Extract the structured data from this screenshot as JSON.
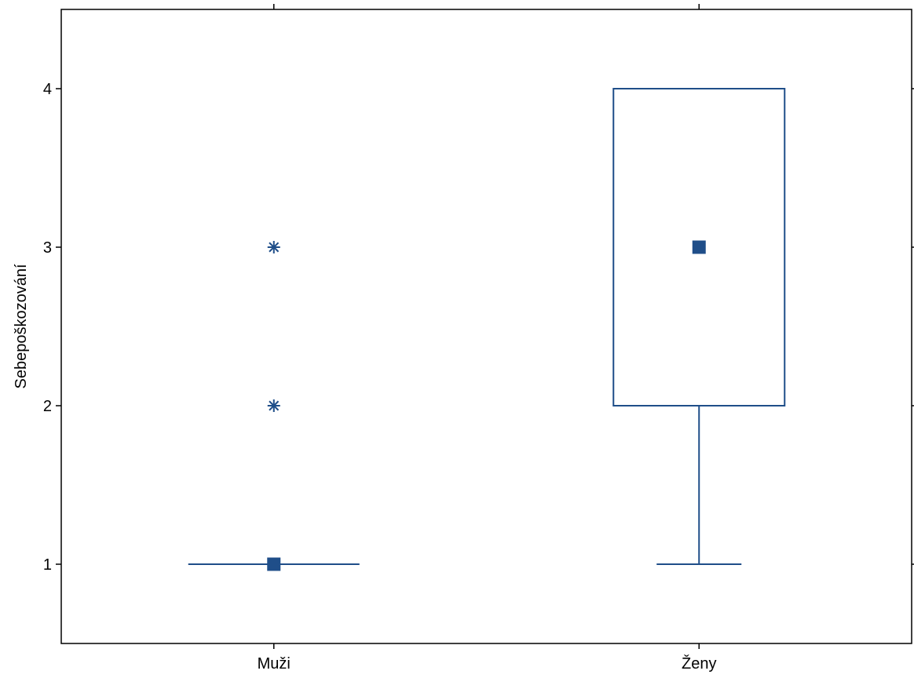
{
  "chart_data": {
    "type": "box",
    "title": "",
    "xlabel": "",
    "ylabel": "Sebepoškozování",
    "ylim": [
      0.5,
      4.5
    ],
    "yticks": [
      1,
      2,
      3,
      4
    ],
    "ytick_labels": [
      "1",
      "2",
      "3",
      "4"
    ],
    "categories": [
      "Muži",
      "Ženy"
    ],
    "grid": false,
    "colors": {
      "box": "#1f4e89",
      "median": "#1f4e89",
      "axis": "#000000"
    },
    "boxes": [
      {
        "category": "Muži",
        "median": 1,
        "q1": 1,
        "q3": 1,
        "whisker_low": 1,
        "whisker_high": 1,
        "outliers": [
          2,
          3
        ]
      },
      {
        "category": "Ženy",
        "median": 3,
        "q1": 2,
        "q3": 4,
        "whisker_low": 1,
        "whisker_high": 4,
        "outliers": []
      }
    ]
  }
}
